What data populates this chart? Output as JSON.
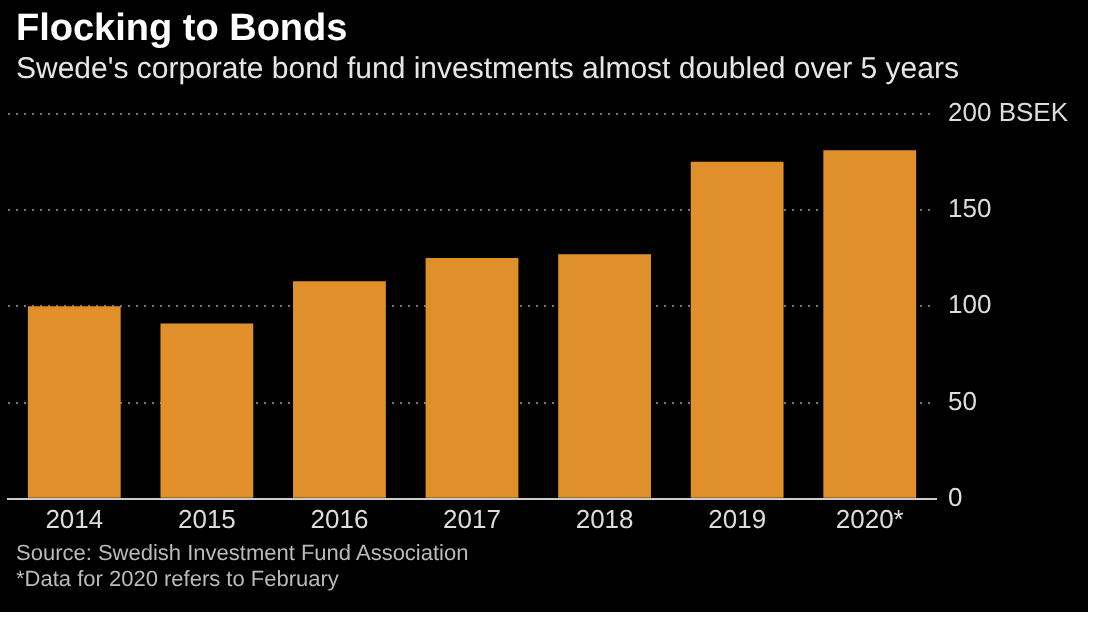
{
  "chart_data": {
    "type": "bar",
    "title": "Flocking to Bonds",
    "subtitle": "Swede's corporate bond fund investments almost doubled over 5 years",
    "categories": [
      "2014",
      "2015",
      "2016",
      "2017",
      "2018",
      "2019",
      "2020*"
    ],
    "values": [
      100,
      91,
      113,
      125,
      127,
      175,
      181
    ],
    "color": "#e0902a",
    "ylim": [
      0,
      200
    ],
    "yticks": [
      0,
      50,
      100,
      150,
      {
        "value": 200,
        "label": "200 BSEK"
      }
    ],
    "grid": "y",
    "annotations": [
      "Source: Swedish Investment Fund Association",
      "*Data for 2020 refers to February"
    ]
  }
}
